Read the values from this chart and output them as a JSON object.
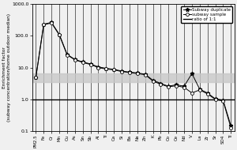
{
  "x_labels": [
    "PM2.5",
    "Fe",
    "Cr",
    "Mn",
    "Cu",
    "As",
    "Sn",
    "Sb",
    "Al",
    "Ti",
    "Ca",
    "Si",
    "Ba",
    "Na",
    "Zn",
    "K",
    "Pb",
    "Co",
    "Ce",
    "Nd",
    "V",
    "La",
    "Zr",
    "Sr",
    "SO4",
    "Ti"
  ],
  "subway_duplicate": [
    5.0,
    230.0,
    260.0,
    110.0,
    26.0,
    18.0,
    15.0,
    13.0,
    10.5,
    9.5,
    8.8,
    7.8,
    7.2,
    6.8,
    6.2,
    4.0,
    3.2,
    2.6,
    2.9,
    2.6,
    6.5,
    2.1,
    1.6,
    1.05,
    0.95,
    0.15
  ],
  "subway_sample": [
    5.0,
    220.0,
    250.0,
    105.0,
    25.0,
    17.5,
    14.5,
    12.5,
    10.0,
    9.0,
    8.5,
    7.5,
    7.0,
    6.5,
    6.0,
    3.8,
    3.0,
    2.5,
    2.7,
    2.4,
    1.6,
    2.0,
    1.5,
    1.0,
    0.9,
    0.13
  ],
  "ratio_line": 1.0,
  "shaded_band_min": 3.5,
  "shaded_band_max": 6.5,
  "ylim_min": 0.1,
  "ylim_max": 1000.0,
  "ylabel": "Enrichment factor\n(subway concentration/home outdoor median)",
  "legend_duplicate": "Subway duplicate",
  "legend_sample": "subway sample",
  "legend_ratio": "ratio of 1:1",
  "band_color": "#c8c8c8",
  "band_alpha": 0.8,
  "bg_color": "#e8e8e8"
}
